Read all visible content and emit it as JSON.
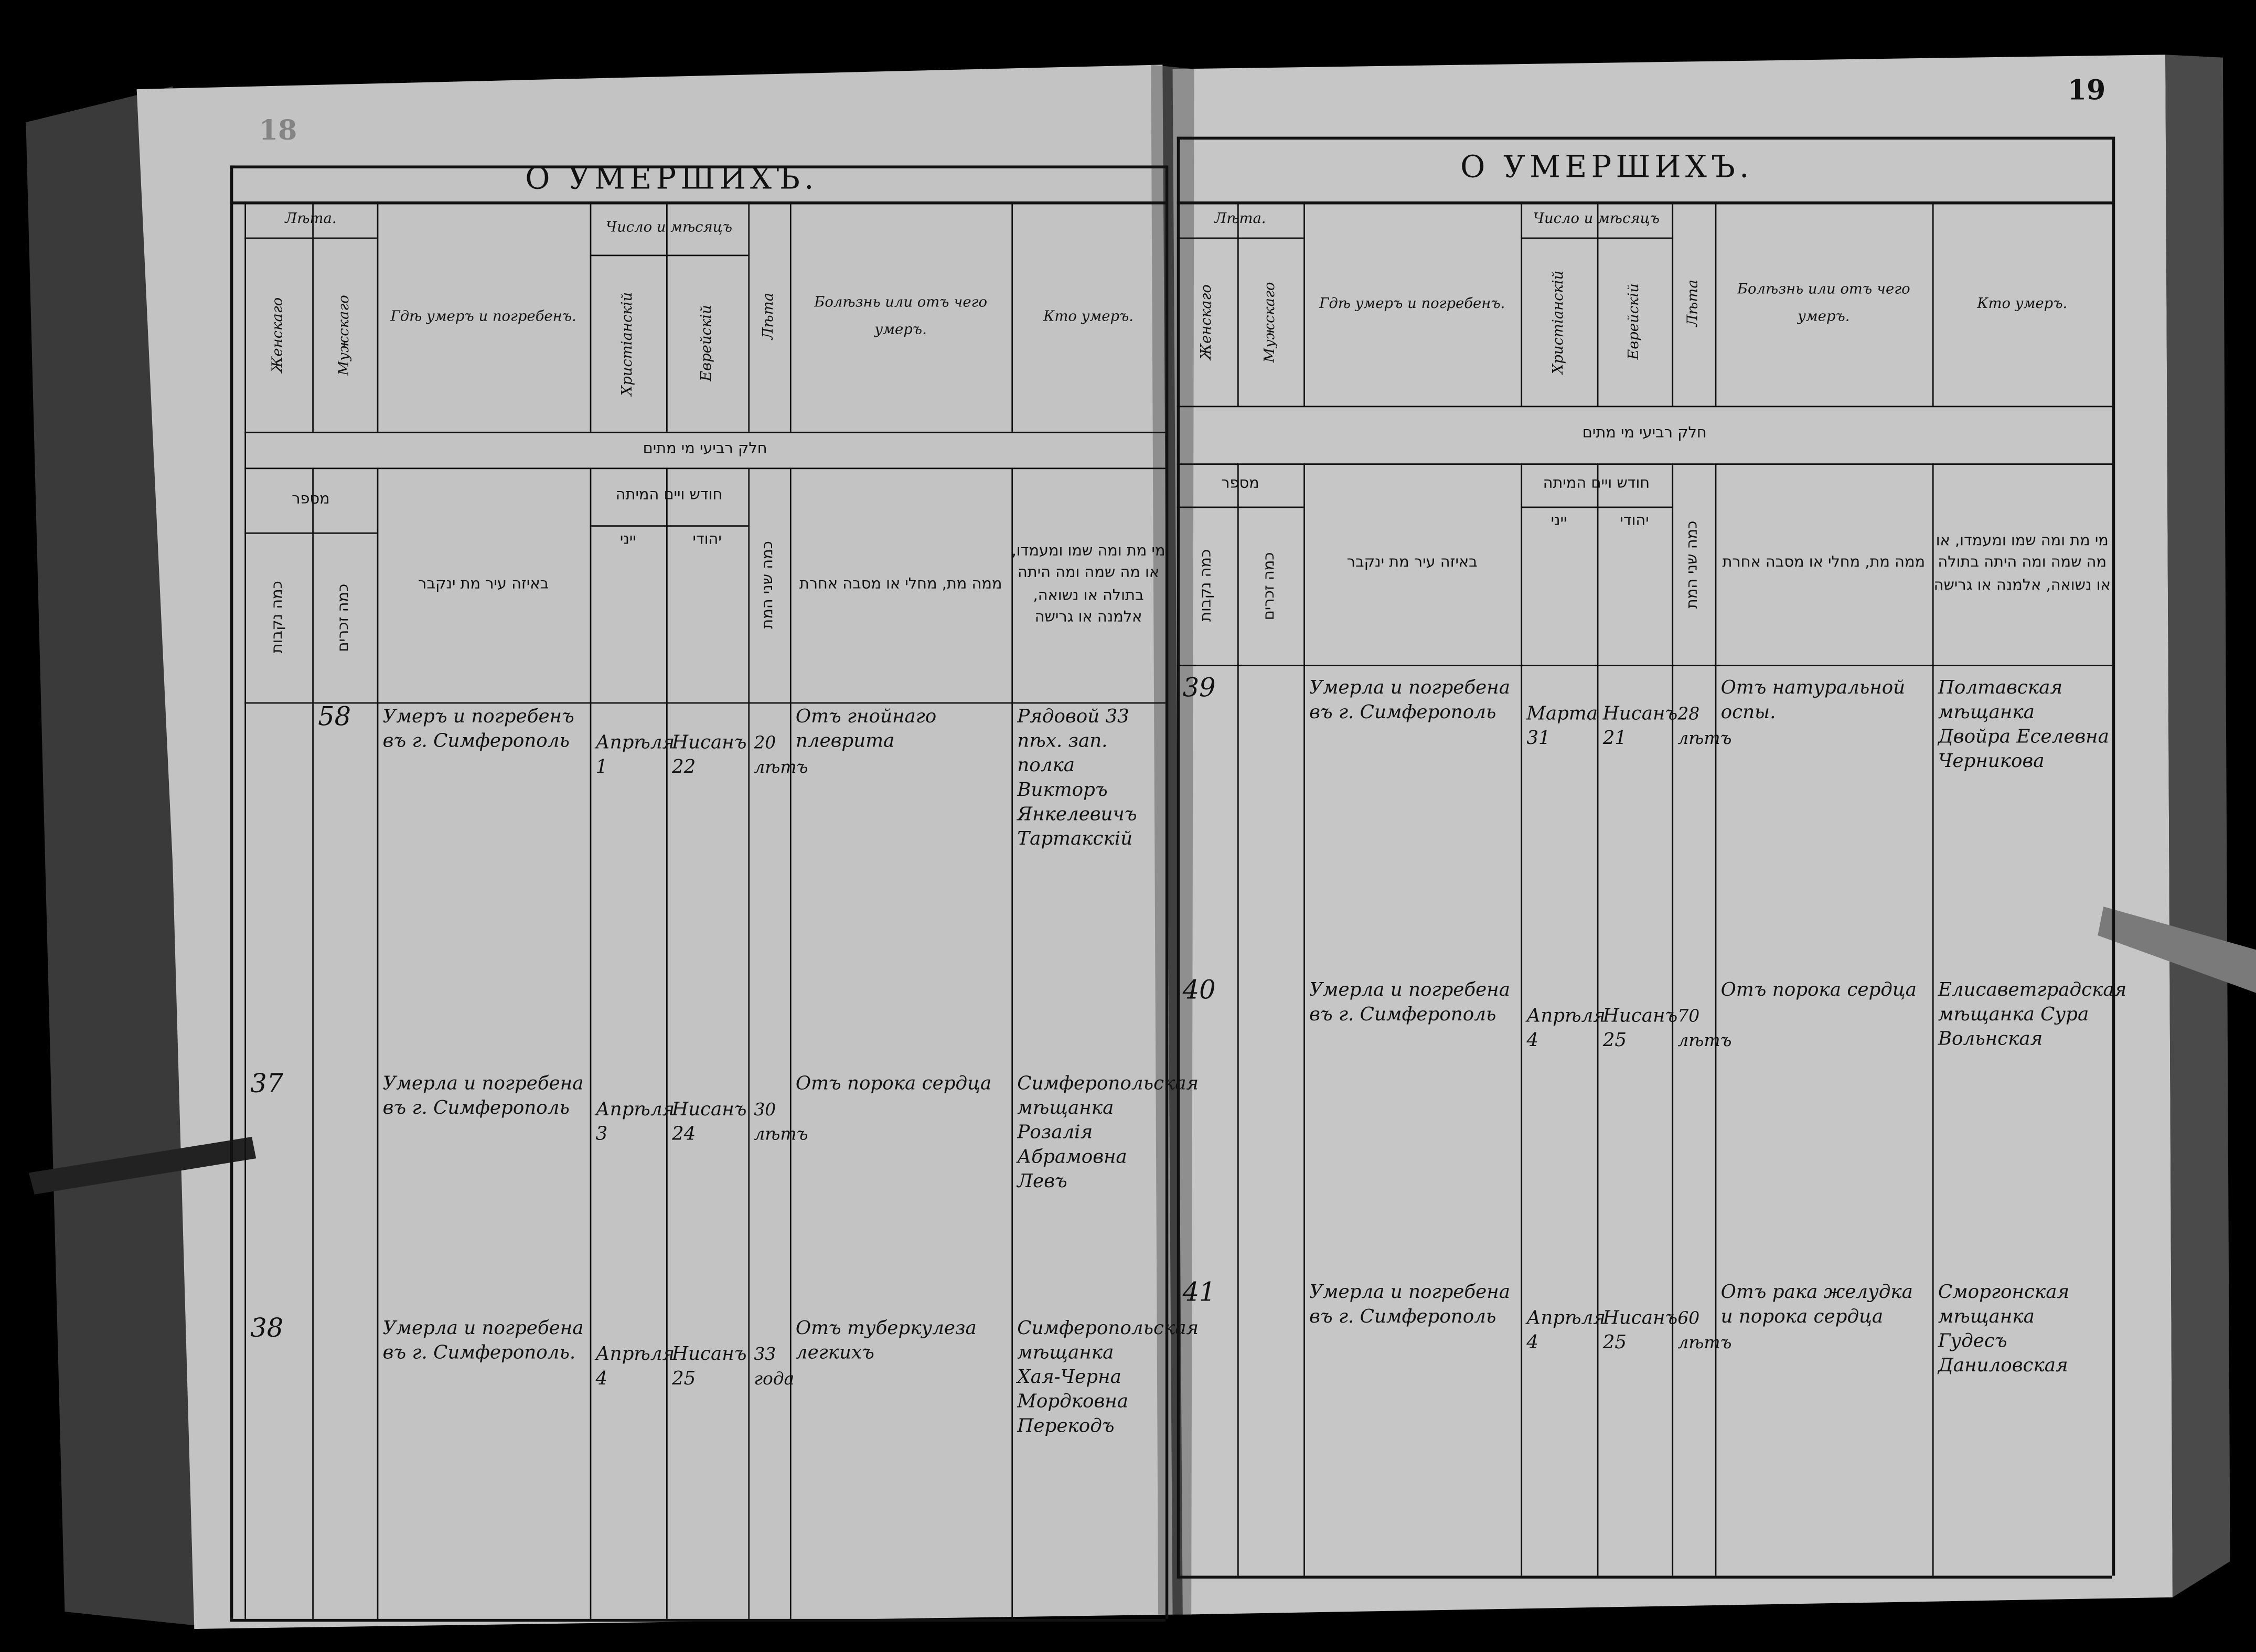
{
  "left_page": {
    "page_number": "18",
    "title": "О УМЕРШИХЪ.",
    "entries": [
      {
        "no_female": "",
        "no_male": "58",
        "place": "Умеръ и погребенъ въ г. Симферополь",
        "civil_date": "Апрѣля 1",
        "jewish_date": "Нисанъ 22",
        "age": "20 лѣтъ",
        "cause": "Отъ гнойнаго плеврита",
        "who": "Рядовой 33 пѣх. зап. полка Викторъ Янкелевичъ Тартакскій"
      },
      {
        "no_female": "37",
        "no_male": "",
        "place": "Умерла и погребена въ г. Симферополь",
        "civil_date": "Апрѣля 3",
        "jewish_date": "Нисанъ 24",
        "age": "30 лѣтъ",
        "cause": "Отъ порока сердца",
        "who": "Симферопольская мѣщанка Розалія Абрамовна Левъ"
      },
      {
        "no_female": "38",
        "no_male": "",
        "place": "Умерла и погребена въ г. Симферополь.",
        "civil_date": "Апрѣля 4",
        "jewish_date": "Нисанъ 25",
        "age": "33 года",
        "cause": "Отъ туберкулеза легкихъ",
        "who": "Симферопольская мѣщанка Хая-Черна Мордковна Перекодъ"
      }
    ]
  },
  "right_page": {
    "page_number": "19",
    "title": "О УМЕРШИХЪ.",
    "entries": [
      {
        "no_female": "39",
        "no_male": "",
        "place": "Умерла и погребена въ г. Симферополь",
        "civil_date": "Марта 31",
        "jewish_date": "Нисанъ 21",
        "age": "28 лѣтъ",
        "cause": "Отъ натуральной оспы.",
        "who": "Полтавская мѣщанка Двойра Еселевна Черникова"
      },
      {
        "no_female": "40",
        "no_male": "",
        "place": "Умерла и погребена въ г. Симферополь",
        "civil_date": "Апрѣля 4",
        "jewish_date": "Нисанъ 25",
        "age": "70 лѣтъ",
        "cause": "Отъ порока сердца",
        "who": "Елисаветградская мѣщанка Сура Вольнская"
      },
      {
        "no_female": "41",
        "no_male": "",
        "place": "Умерла и погребена въ г. Симферополь",
        "civil_date": "Апрѣля 4",
        "jewish_date": "Нисанъ 25",
        "age": "60 лѣтъ",
        "cause": "Отъ рака желудка и порока сердца",
        "who": "Сморгонская мѣщанка Гудесъ Даниловская"
      }
    ]
  },
  "header": {
    "years_group": "Лѣта.",
    "female": "Женскаго",
    "male": "Мужскаго",
    "where": "Гдѣ умеръ и погребенъ.",
    "date_group": "Число и мѣсяцъ",
    "christian": "Христіанскій",
    "jewish": "Еврейскій",
    "age": "Лѣта",
    "cause": "Болѣзнь или отъ чего умеръ.",
    "who": "Кто умеръ."
  },
  "hebrew_header": {
    "banner": "חלק רביעי מי מתים",
    "number": "מספר",
    "female": "כמה נקבות",
    "male": "כמה זכרים",
    "where": "באיזה עיר מת ינקבר",
    "date_group": "חודש ויים המיתה",
    "christian": "ייני",
    "jewish": "יהודי",
    "age": "כמה שני המת",
    "cause": "ממה מת, מחלי או מסבה אחרת",
    "who": "מי מת ומה שמו ומעמדו, או מה שמה ומה היתה בתולה או נשואה, אלמנה או גרישה"
  },
  "colors": {
    "paper": "#c3c3c3",
    "ink": "#111111",
    "background": "#000000"
  }
}
